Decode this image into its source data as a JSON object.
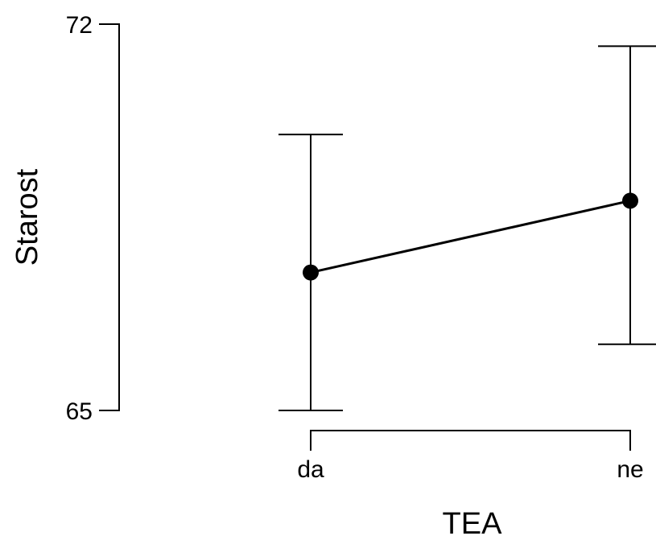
{
  "chart_data": {
    "type": "line",
    "title": "",
    "xlabel": "TEA",
    "ylabel": "Starost",
    "categories": [
      "da",
      "ne"
    ],
    "series": [
      {
        "values": [
          67.5,
          68.8
        ],
        "lower": [
          65.0,
          66.2
        ],
        "upper": [
          70.0,
          71.6
        ]
      }
    ],
    "ylim": [
      65,
      72
    ],
    "y_ticks": [
      65,
      72
    ],
    "y_tick_labels": [
      "65",
      "72"
    ],
    "grid": false,
    "colors": {
      "line": "#000000",
      "points": "#000000",
      "background": "#ffffff"
    }
  }
}
